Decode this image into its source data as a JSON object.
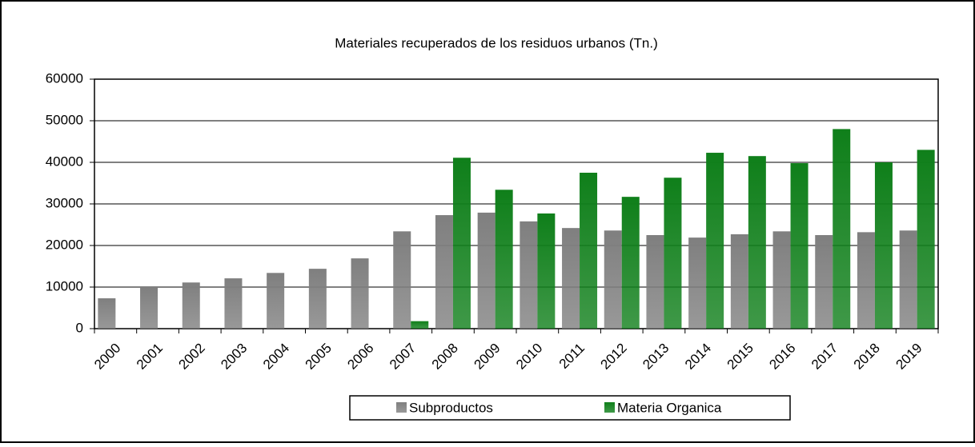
{
  "chart_data": {
    "type": "bar",
    "title": "Materiales recuperados de los residuos urbanos (Tn.)",
    "categories": [
      "2000",
      "2001",
      "2002",
      "2003",
      "2004",
      "2005",
      "2006",
      "2007",
      "2008",
      "2009",
      "2010",
      "2011",
      "2012",
      "2013",
      "2014",
      "2015",
      "2016",
      "2017",
      "2018",
      "2019"
    ],
    "series": [
      {
        "name": "Subproductos",
        "color": "#7f7f7f",
        "values": [
          7300,
          10000,
          11100,
          12100,
          13400,
          14400,
          16900,
          23400,
          27300,
          27900,
          25800,
          24200,
          23600,
          22500,
          21900,
          22700,
          23400,
          22500,
          23200,
          23600
        ]
      },
      {
        "name": "Materia Organica",
        "color": "#0f7f1a",
        "values": [
          null,
          null,
          null,
          null,
          null,
          null,
          null,
          1800,
          41100,
          33400,
          27700,
          37500,
          31700,
          36300,
          42300,
          41500,
          39800,
          48000,
          40000,
          43000
        ]
      }
    ],
    "ylim": [
      0,
      60000
    ],
    "yticks": [
      0,
      10000,
      20000,
      30000,
      40000,
      50000,
      60000
    ],
    "grid": true,
    "legend": "bottom"
  }
}
